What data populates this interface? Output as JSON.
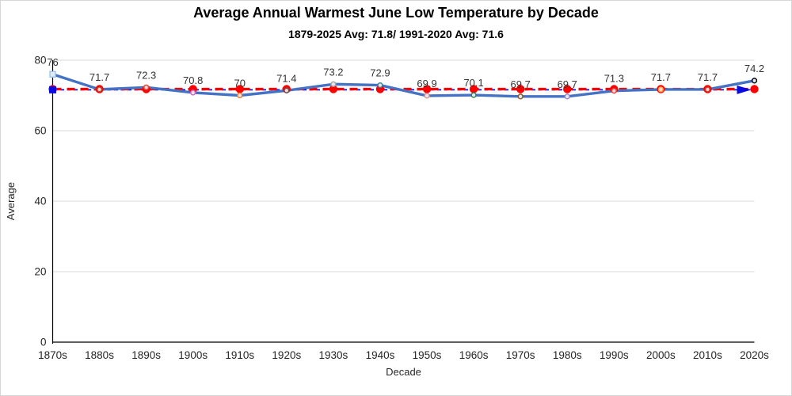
{
  "window": {
    "background": "#ffffff",
    "border_color": "#d6d6d6"
  },
  "chart_data": {
    "type": "line",
    "title": "Average Annual Warmest June Low Temperature by Decade",
    "subtitle": "1879-2025 Avg: 71.8/ 1991-2020 Avg: 71.6",
    "xlabel": "Decade",
    "ylabel": "Average",
    "ylim": [
      0,
      80
    ],
    "yticks": [
      0,
      20,
      40,
      60,
      80
    ],
    "grid": "horizontal",
    "legend_position": "none",
    "axis_color": "#000000",
    "gridline_color": "#d9d9d9",
    "tick_label_color": "#262626",
    "data_label_color": "#333333",
    "categories": [
      "1870s",
      "1880s",
      "1890s",
      "1900s",
      "1910s",
      "1920s",
      "1930s",
      "1940s",
      "1950s",
      "1960s",
      "1970s",
      "1980s",
      "1990s",
      "2000s",
      "2010s",
      "2020s"
    ],
    "series": [
      {
        "name": "decade-average-line",
        "role": "data",
        "color": "#4472C4",
        "line_style": "solid",
        "line_width": 3.4,
        "values": [
          76,
          71.7,
          72.3,
          70.8,
          70,
          71.4,
          73.2,
          72.9,
          69.9,
          70.1,
          69.7,
          69.7,
          71.3,
          71.7,
          71.7,
          74.2
        ],
        "point_labels": [
          "76",
          "71.7",
          "72.3",
          "70.8",
          "70",
          "71.4",
          "73.2",
          "72.9",
          "69.9",
          "70.1",
          "69.7",
          "69.7",
          "71.3",
          "71.7",
          "71.7",
          "74.2"
        ],
        "marker_style": "open-ring-varied",
        "first_marker_shape": "square",
        "last_marker_color": "#000000",
        "marker_colors": [
          "#9DC3E6",
          "#C23B22",
          "#D4503C",
          "#CC66CC",
          "#ED7D31",
          "#595959",
          "#A6A6A6",
          "#31859C",
          "#D99694",
          "#2E7D5B",
          "#8B5A2B",
          "#9E86C8",
          "#E8443C",
          "#F2A33C",
          "#E0301E",
          "#000000"
        ]
      },
      {
        "name": "avg-1879-2025-reference",
        "role": "reference",
        "color": "#FF0000",
        "line_style": "dashed",
        "line_width": 3.2,
        "value": 71.8,
        "point_marker": "filled-circle"
      },
      {
        "name": "avg-1991-2020-reference",
        "role": "reference",
        "color": "#0B0BE0",
        "line_style": "dashed-thin",
        "line_width": 1.7,
        "value": 71.6,
        "start_marker": "filled-square",
        "end_marker": "arrow-right"
      }
    ]
  }
}
